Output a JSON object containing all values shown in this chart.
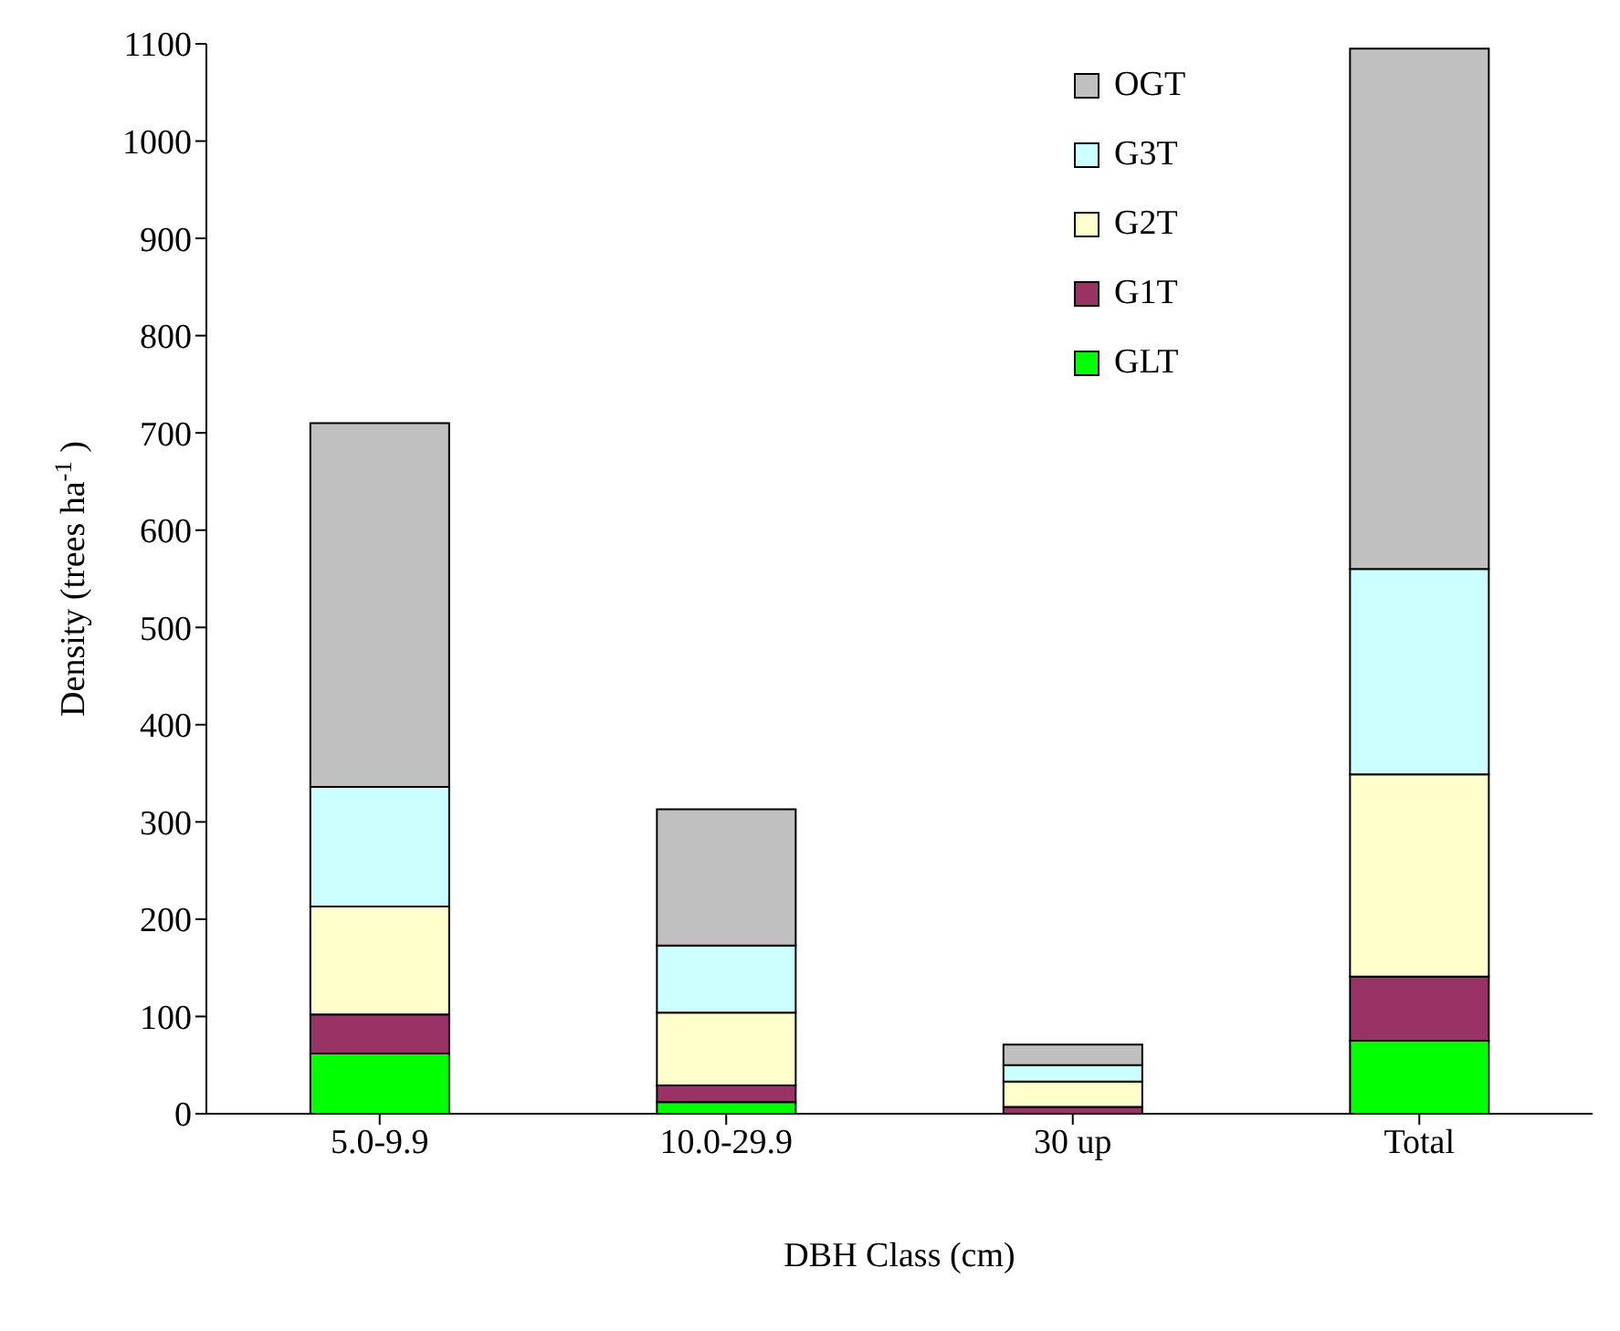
{
  "chart_data": {
    "type": "bar",
    "stacked": true,
    "xlabel": "DBH Class (cm)",
    "ylabel": "Density (trees ha$^{-1}$)",
    "categories": [
      "5.0-9.9",
      "10.0-29.9",
      "30 up",
      "Total"
    ],
    "series": [
      {
        "name": "GLT",
        "color": "#00ff00",
        "values": [
          62,
          12,
          0,
          75
        ]
      },
      {
        "name": "G1T",
        "color": "#993366",
        "values": [
          40,
          17,
          7,
          66
        ]
      },
      {
        "name": "G2T",
        "color": "#ffffcc",
        "values": [
          111,
          75,
          26,
          208
        ]
      },
      {
        "name": "G3T",
        "color": "#ccffff",
        "values": [
          123,
          69,
          17,
          211
        ]
      },
      {
        "name": "OGT",
        "color": "#c0c0c0",
        "values": [
          374,
          140,
          21,
          535
        ]
      }
    ],
    "ylim": [
      0,
      1100
    ],
    "yticks": [
      0,
      100,
      200,
      300,
      400,
      500,
      600,
      700,
      800,
      900,
      1000,
      1100
    ],
    "grid": false,
    "legend": "top right"
  }
}
